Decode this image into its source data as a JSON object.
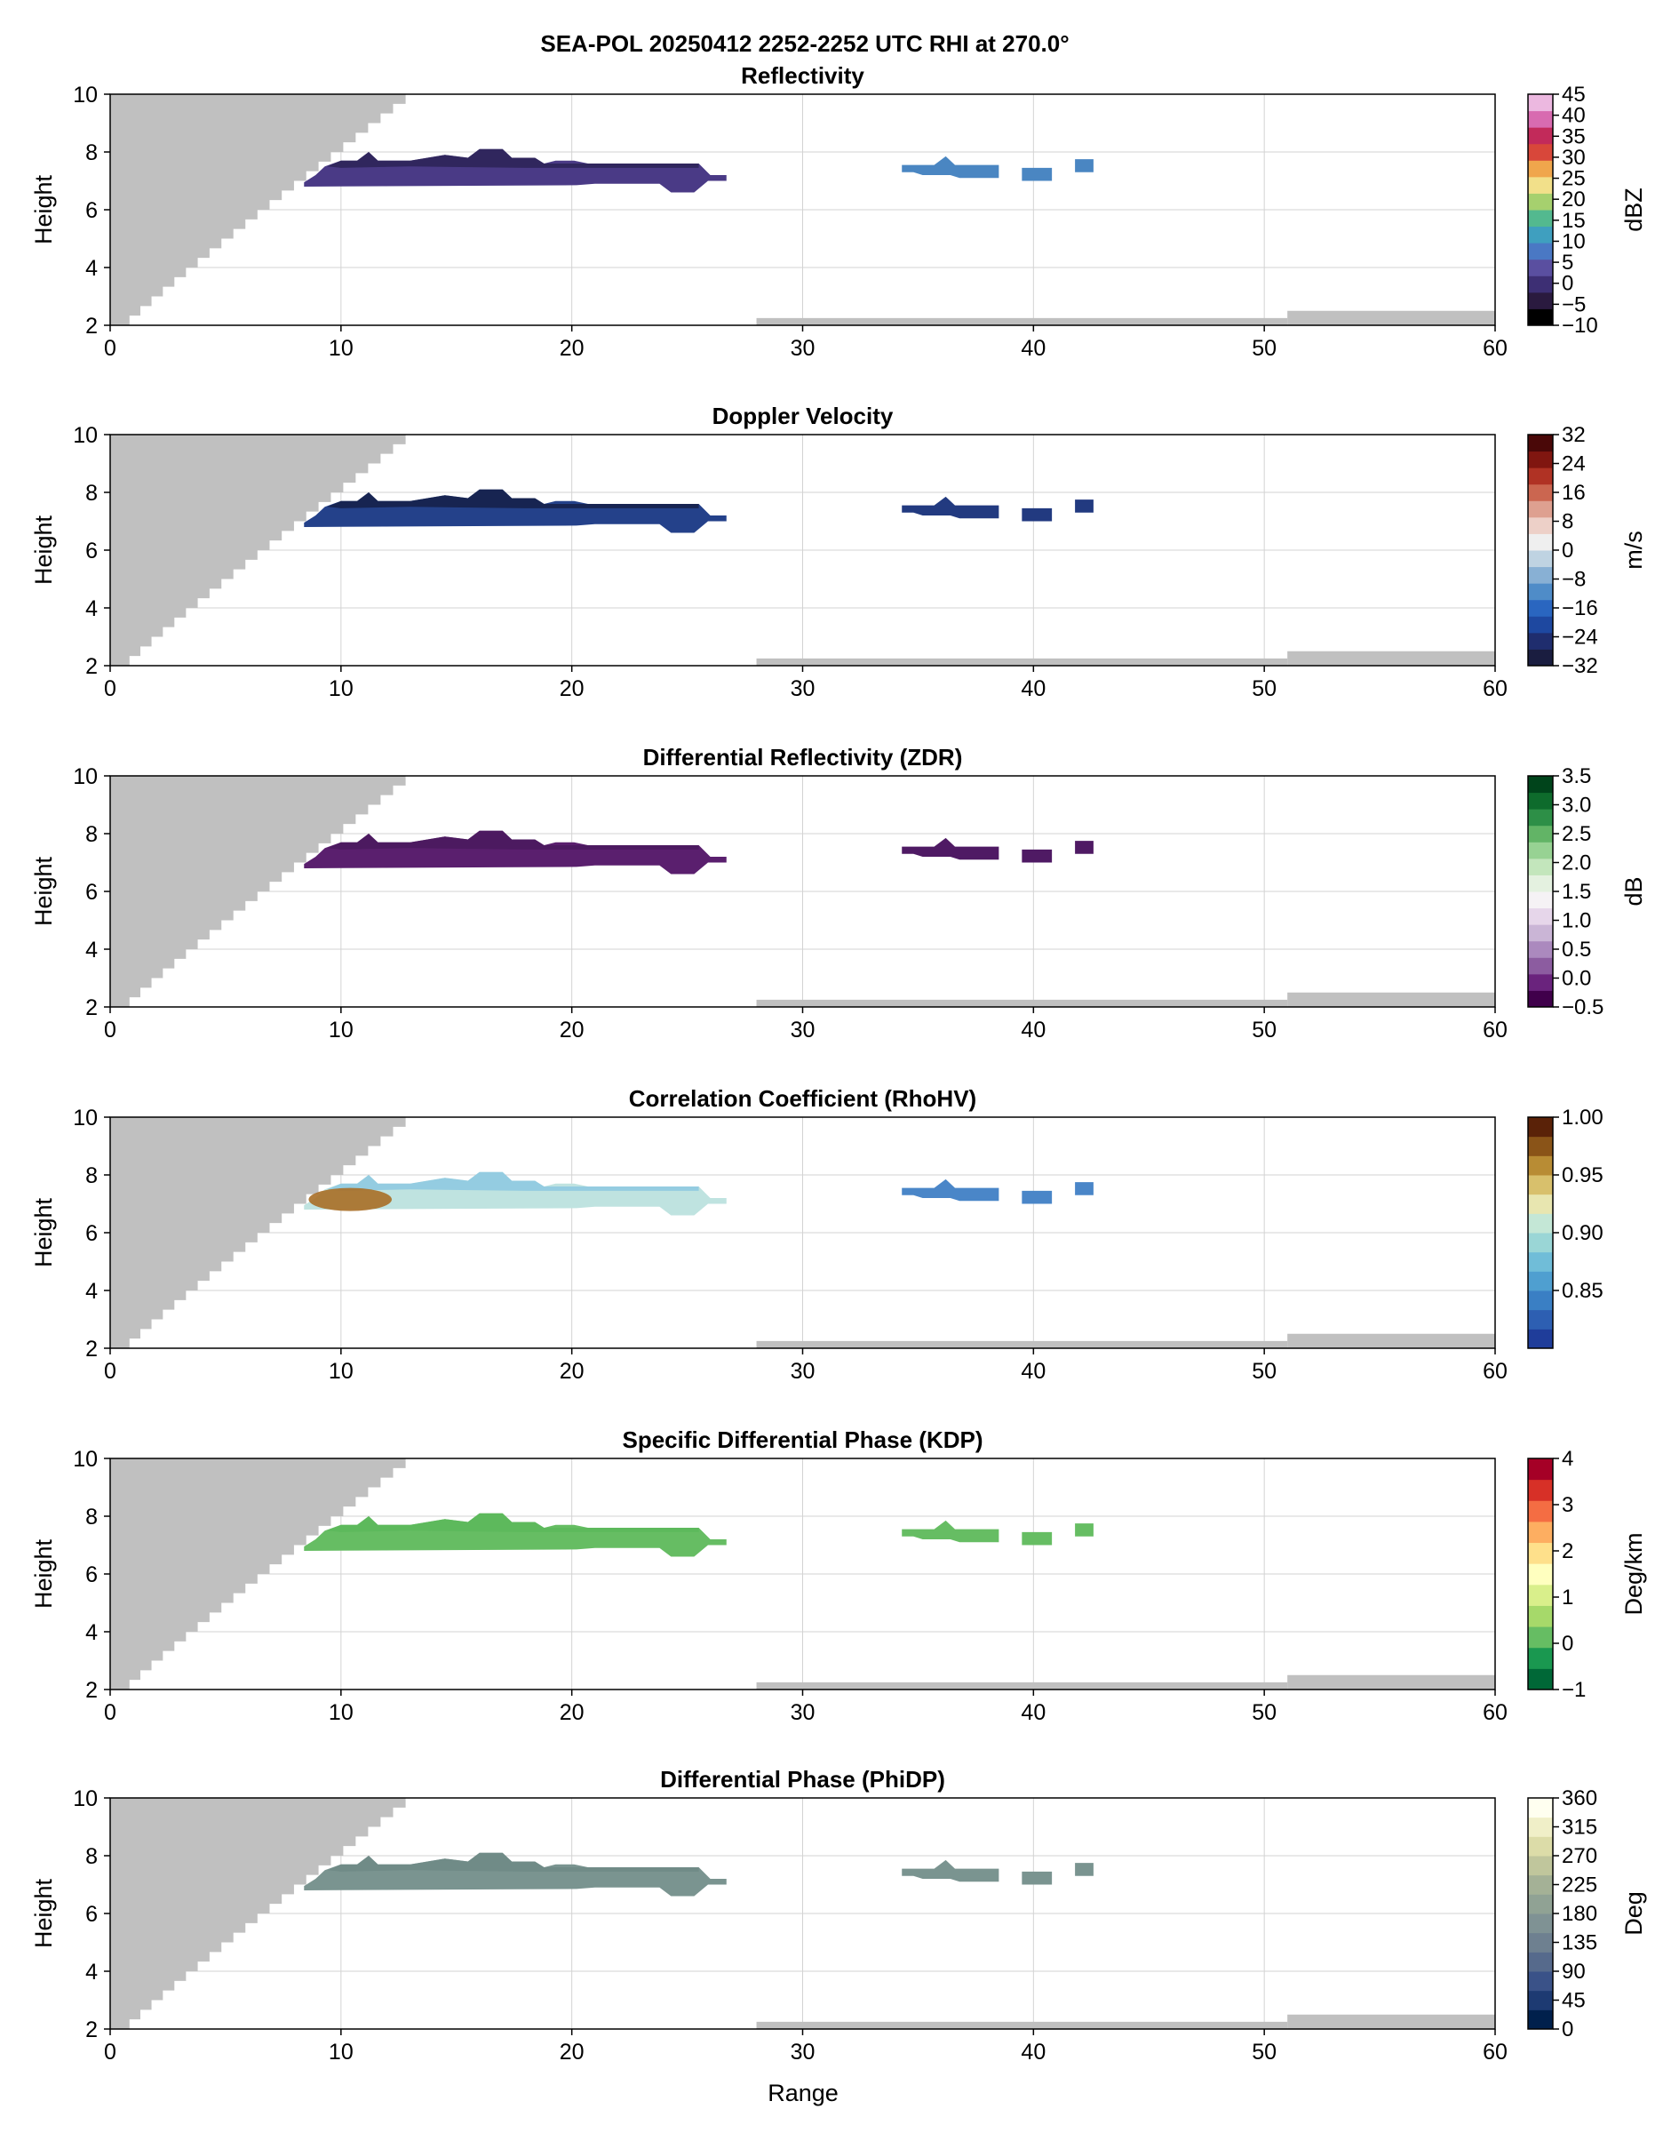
{
  "figure": {
    "suptitle": "SEA-POL 20250412 2252-2252 UTC RHI at 270.0°",
    "xlabel": "Range"
  },
  "colors": {
    "blocked": "#c0c0c0",
    "grid": "#d3d3d3",
    "axes": "#000000"
  },
  "chart_data": [
    {
      "type": "heatmap",
      "title": "Reflectivity",
      "xlabel": "",
      "ylabel": "Height",
      "xlim": [
        0,
        60
      ],
      "ylim": [
        2,
        10
      ],
      "xticks": [
        0,
        10,
        20,
        30,
        40,
        50,
        60
      ],
      "yticks": [
        2,
        4,
        6,
        8,
        10
      ],
      "grid": true,
      "colorbar": {
        "label": "dBZ",
        "range": [
          -10,
          45
        ],
        "ticks": [
          -10,
          -5,
          0,
          5,
          10,
          15,
          20,
          25,
          30,
          35,
          40,
          45
        ],
        "tick_labels": [
          "−10",
          "−5",
          "0",
          "5",
          "10",
          "15",
          "20",
          "25",
          "30",
          "35",
          "40",
          "45"
        ],
        "colors": [
          "#000000",
          "#2a1a3f",
          "#3d2f74",
          "#5a4fa0",
          "#4a78c4",
          "#3f9fbf",
          "#53b98f",
          "#a6d06e",
          "#f2e08a",
          "#f0a64c",
          "#d8473a",
          "#c22a5a",
          "#d86bb0",
          "#ecb8e0"
        ]
      },
      "echo_colors": {
        "left": "#4a3a86",
        "left_top": "#2c2356",
        "right": "#4a86c2"
      }
    },
    {
      "type": "heatmap",
      "title": "Doppler Velocity",
      "xlabel": "",
      "ylabel": "Height",
      "xlim": [
        0,
        60
      ],
      "ylim": [
        2,
        10
      ],
      "xticks": [
        0,
        10,
        20,
        30,
        40,
        50,
        60
      ],
      "yticks": [
        2,
        4,
        6,
        8,
        10
      ],
      "grid": true,
      "colorbar": {
        "label": "m/s",
        "range": [
          -32,
          32
        ],
        "ticks": [
          -32,
          -24,
          -16,
          -8,
          0,
          8,
          16,
          24,
          32
        ],
        "tick_labels": [
          "−32",
          "−24",
          "−16",
          "−8",
          "0",
          "8",
          "16",
          "24",
          "32"
        ],
        "colors": [
          "#1a1d40",
          "#1f2d6e",
          "#1e48a0",
          "#2a66c0",
          "#4f8cc8",
          "#88b0d4",
          "#bfd3e2",
          "#efefef",
          "#edd0c8",
          "#dea090",
          "#cb6650",
          "#b03224",
          "#801610",
          "#4a0808"
        ]
      },
      "echo_colors": {
        "left": "#24418a",
        "left_top": "#152046",
        "right": "#223a80"
      }
    },
    {
      "type": "heatmap",
      "title": "Differential Reflectivity (ZDR)",
      "xlabel": "",
      "ylabel": "Height",
      "xlim": [
        0,
        60
      ],
      "ylim": [
        2,
        10
      ],
      "xticks": [
        0,
        10,
        20,
        30,
        40,
        50,
        60
      ],
      "yticks": [
        2,
        4,
        6,
        8,
        10
      ],
      "grid": true,
      "colorbar": {
        "label": "dB",
        "range": [
          -0.5,
          3.5
        ],
        "ticks": [
          -0.5,
          0.0,
          0.5,
          1.0,
          1.5,
          2.0,
          2.5,
          3.0,
          3.5
        ],
        "tick_labels": [
          "−0.5",
          "0.0",
          "0.5",
          "1.0",
          "1.5",
          "2.0",
          "2.5",
          "3.0",
          "3.5"
        ],
        "colors": [
          "#40004b",
          "#6a237d",
          "#8c5ca0",
          "#ab89be",
          "#cab5d6",
          "#e6d6ea",
          "#f5f2f5",
          "#e4f1e0",
          "#c3e6bc",
          "#97d293",
          "#62b466",
          "#2d8f47",
          "#0e6b2c",
          "#00441b"
        ]
      },
      "echo_colors": {
        "left": "#5a1f6e",
        "left_top": "#4a1a5e",
        "right": "#4f1a64"
      }
    },
    {
      "type": "heatmap",
      "title": "Correlation Coefficient (RhoHV)",
      "xlabel": "",
      "ylabel": "Height",
      "xlim": [
        0,
        60
      ],
      "ylim": [
        2,
        10
      ],
      "xticks": [
        0,
        10,
        20,
        30,
        40,
        50,
        60
      ],
      "yticks": [
        2,
        4,
        6,
        8,
        10
      ],
      "grid": true,
      "colorbar": {
        "label": "",
        "range": [
          0.8,
          1.0
        ],
        "ticks": [
          0.85,
          0.9,
          0.95,
          1.0
        ],
        "tick_labels": [
          "0.85",
          "0.90",
          "0.95",
          "1.00"
        ],
        "colors": [
          "#1f3d9a",
          "#2d5fb2",
          "#3a7fc4",
          "#4f9fd0",
          "#70bdd8",
          "#9ad6d6",
          "#c4e7d6",
          "#e8e6b0",
          "#d8c06c",
          "#b88c34",
          "#8a5418",
          "#5a2208"
        ]
      },
      "echo_colors": {
        "left": "#bfe3e0",
        "left_top": "#8cc8e0",
        "core": "#a86e26",
        "right": "#4a86c8"
      }
    },
    {
      "type": "heatmap",
      "title": "Specific Differential Phase (KDP)",
      "xlabel": "",
      "ylabel": "Height",
      "xlim": [
        0,
        60
      ],
      "ylim": [
        2,
        10
      ],
      "xticks": [
        0,
        10,
        20,
        30,
        40,
        50,
        60
      ],
      "yticks": [
        2,
        4,
        6,
        8,
        10
      ],
      "grid": true,
      "colorbar": {
        "label": "Deg/km",
        "range": [
          -1,
          4
        ],
        "ticks": [
          -1,
          0,
          1,
          2,
          3,
          4
        ],
        "tick_labels": [
          "−1",
          "0",
          "1",
          "2",
          "3",
          "4"
        ],
        "colors": [
          "#006837",
          "#1a9850",
          "#66bd63",
          "#a6d96a",
          "#d9ef8b",
          "#ffffbf",
          "#fee08b",
          "#fdae61",
          "#f46d43",
          "#d73027",
          "#a50026"
        ]
      },
      "echo_colors": {
        "left": "#66bd63",
        "left_top": "#5cb85a",
        "right": "#66bd63"
      }
    },
    {
      "type": "heatmap",
      "title": "Differential Phase (PhiDP)",
      "xlabel": "Range",
      "ylabel": "Height",
      "xlim": [
        0,
        60
      ],
      "ylim": [
        2,
        10
      ],
      "xticks": [
        0,
        10,
        20,
        30,
        40,
        50,
        60
      ],
      "yticks": [
        2,
        4,
        6,
        8,
        10
      ],
      "grid": true,
      "colorbar": {
        "label": "Deg",
        "range": [
          0,
          360
        ],
        "ticks": [
          0,
          45,
          90,
          135,
          180,
          225,
          270,
          315,
          360
        ],
        "tick_labels": [
          "0",
          "45",
          "90",
          "135",
          "180",
          "225",
          "270",
          "315",
          "360"
        ],
        "colors": [
          "#00204c",
          "#1d3a72",
          "#3a5288",
          "#566a8c",
          "#6e8090",
          "#7f9294",
          "#90a294",
          "#a4b196",
          "#c0c69c",
          "#dcdca8",
          "#f0efc8",
          "#fffff0"
        ]
      },
      "echo_colors": {
        "left": "#7a9490",
        "left_top": "#6e8a86",
        "right": "#7a9490"
      }
    }
  ]
}
